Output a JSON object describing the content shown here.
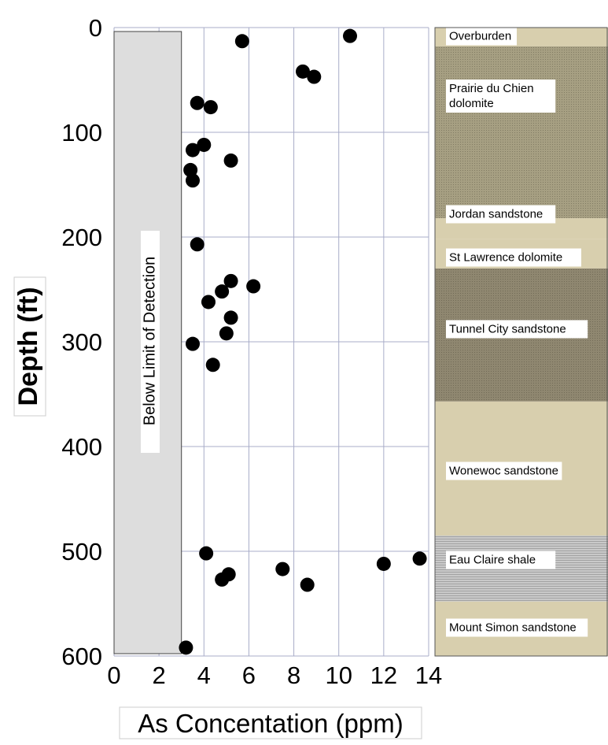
{
  "chart_data": {
    "type": "scatter",
    "xlabel": "As Concentation (ppm)",
    "ylabel": "Depth (ft)",
    "xlim": [
      0,
      14
    ],
    "ylim": [
      0,
      600
    ],
    "y_inverted": true,
    "x_ticks": [
      0,
      2,
      4,
      6,
      8,
      10,
      12,
      14
    ],
    "y_ticks": [
      0,
      100,
      200,
      300,
      400,
      500,
      600
    ],
    "grid": true,
    "detection_limit": {
      "label": "Below Limit of Detection",
      "x_max": 3,
      "color": "#dddddd"
    },
    "marker_color": "#000000",
    "points": [
      {
        "x": 10.5,
        "y": 8
      },
      {
        "x": 5.7,
        "y": 13
      },
      {
        "x": 8.4,
        "y": 42
      },
      {
        "x": 8.9,
        "y": 47
      },
      {
        "x": 3.7,
        "y": 72
      },
      {
        "x": 4.3,
        "y": 76
      },
      {
        "x": 4.0,
        "y": 112
      },
      {
        "x": 3.5,
        "y": 117
      },
      {
        "x": 5.2,
        "y": 127
      },
      {
        "x": 3.4,
        "y": 136
      },
      {
        "x": 3.5,
        "y": 146
      },
      {
        "x": 3.7,
        "y": 207
      },
      {
        "x": 5.2,
        "y": 242
      },
      {
        "x": 6.2,
        "y": 247
      },
      {
        "x": 4.8,
        "y": 252
      },
      {
        "x": 4.2,
        "y": 262
      },
      {
        "x": 5.2,
        "y": 277
      },
      {
        "x": 5.0,
        "y": 292
      },
      {
        "x": 3.5,
        "y": 302
      },
      {
        "x": 4.4,
        "y": 322
      },
      {
        "x": 13.6,
        "y": 507
      },
      {
        "x": 4.1,
        "y": 502
      },
      {
        "x": 12.0,
        "y": 512
      },
      {
        "x": 7.5,
        "y": 517
      },
      {
        "x": 5.1,
        "y": 522
      },
      {
        "x": 4.8,
        "y": 527
      },
      {
        "x": 8.6,
        "y": 532
      },
      {
        "x": 3.2,
        "y": 592
      }
    ]
  },
  "stratigraphy": [
    {
      "name": "Overburden",
      "top": 0,
      "bottom": 18,
      "fill": "#d8cfae",
      "pattern": "plain"
    },
    {
      "name": "Prairie du Chien dolomite",
      "top": 18,
      "bottom": 182,
      "fill": "#a69f82",
      "pattern": "dots"
    },
    {
      "name": "Jordan sandstone",
      "top": 182,
      "bottom": 202,
      "fill": "#d8cfae",
      "pattern": "plain"
    },
    {
      "name": "St Lawrence dolomite",
      "top": 202,
      "bottom": 230,
      "fill": "#d8cfae",
      "pattern": "plain"
    },
    {
      "name": "Tunnel City sandstone",
      "top": 230,
      "bottom": 357,
      "fill": "#8f8770",
      "pattern": "dots"
    },
    {
      "name": "Wonewoc sandstone",
      "top": 357,
      "bottom": 485,
      "fill": "#d8cfae",
      "pattern": "plain"
    },
    {
      "name": "Eau Claire shale",
      "top": 485,
      "bottom": 548,
      "fill": "#c9c9c9",
      "pattern": "lines"
    },
    {
      "name": "Mount Simon sandstone",
      "top": 548,
      "bottom": 600,
      "fill": "#d8cfae",
      "pattern": "plain"
    }
  ]
}
